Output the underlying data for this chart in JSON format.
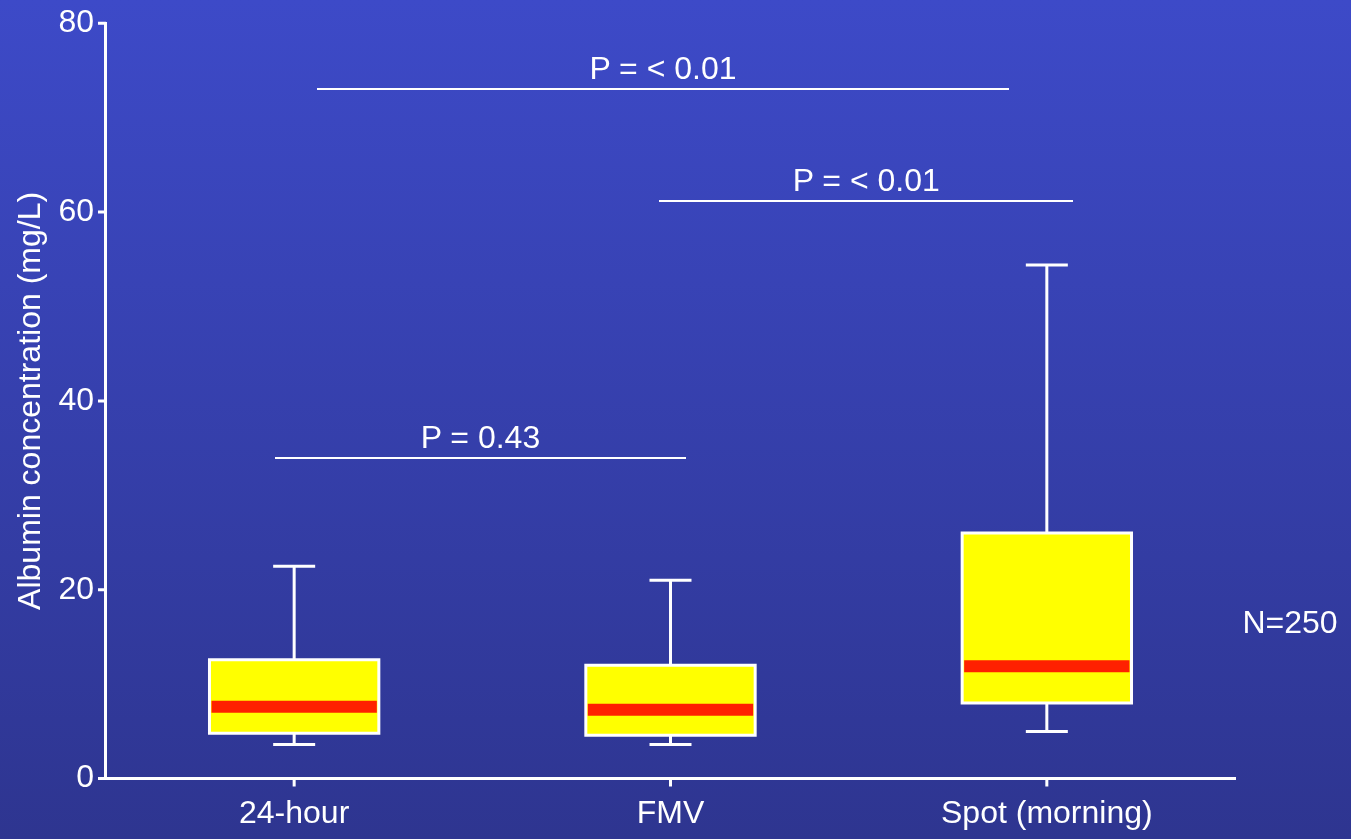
{
  "chart_data": {
    "type": "box",
    "ylabel": "Albumin concentration (mg/L)",
    "categories": [
      "24-hour",
      "FMV",
      "Spot (morning)"
    ],
    "series": [
      {
        "color": "#ffff00",
        "boxes": [
          {
            "low": 3.6,
            "q1": 4.8,
            "median": 7.6,
            "q3": 12.6,
            "high": 22.5
          },
          {
            "low": 3.6,
            "q1": 4.6,
            "median": 7.3,
            "q3": 12.0,
            "high": 21.0
          },
          {
            "low": 5.0,
            "q1": 8.0,
            "median": 11.9,
            "q3": 26.0,
            "high": 54.4
          }
        ]
      }
    ],
    "ylim": [
      0,
      80
    ],
    "yticks": [
      0,
      20,
      40,
      60,
      80
    ],
    "annotations": [
      "P = < 0.01",
      "P = < 0.01",
      "P = 0.43",
      "N=250"
    ]
  }
}
